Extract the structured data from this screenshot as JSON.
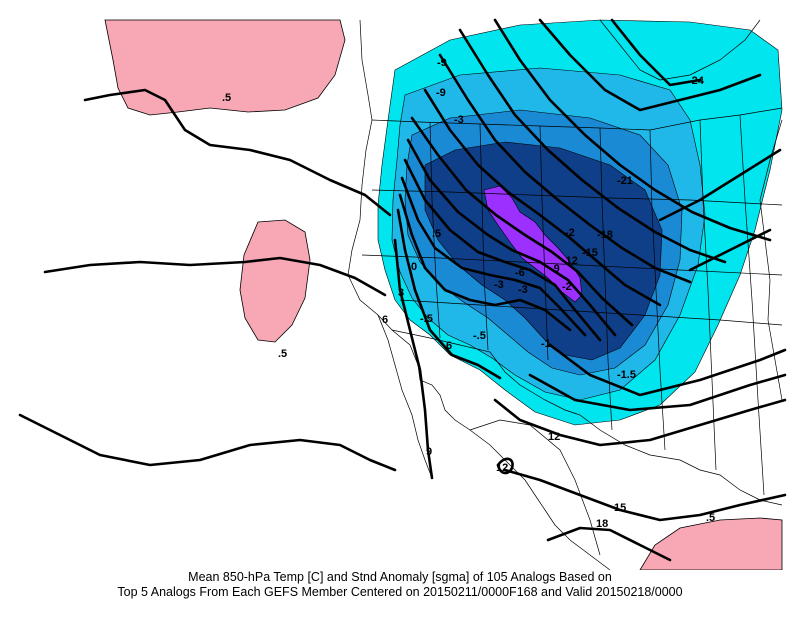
{
  "caption": {
    "line1": "Mean 850-hPa Temp [C] and Stnd Anomaly [sgma] of 105 Analogs Based on",
    "line2": "Top 5 Analogs From Each GEFS Member Centered on 20150211/0000F168 and Valid 20150218/0000"
  },
  "anomaly_colors": {
    "positive_0_5": "#f7a8b4",
    "neg_1": "#00e5ee",
    "neg_1_5": "#20b8e8",
    "neg_2": "#1a8ad4",
    "neg_2_5": "#0e3f88",
    "neg_3": "#9b30ff"
  },
  "temperature_labels": {
    "t_neg24": "-24",
    "t_neg21": "-21",
    "t_neg18": "-18",
    "t_neg15": "-15",
    "t_neg12": "-12",
    "t_neg9_a": "-9",
    "t_neg9_b": "-9",
    "t_neg9_c": "-9",
    "t_neg6": "-6",
    "t_neg3": "-3",
    "t_0": "0",
    "t_3": "3",
    "t_6a": "6",
    "t_6b": "6",
    "t_9": "9",
    "t_12a": "12",
    "t_12b": "12",
    "t_15": "15",
    "t_18": "18",
    "t_neg3b": "-3"
  },
  "anomaly_labels": {
    "a_pos1": ".5",
    "a_pos2": ".5",
    "a_pos3": ".5",
    "a_pos4": ".5",
    "a_neg5a": "-.5",
    "a_neg5b": "-.5",
    "a_neg1": "-1",
    "a_neg15": "-1.5",
    "a_neg2a": "-2",
    "a_neg2b": "-2",
    "a_neg3": "-3"
  }
}
